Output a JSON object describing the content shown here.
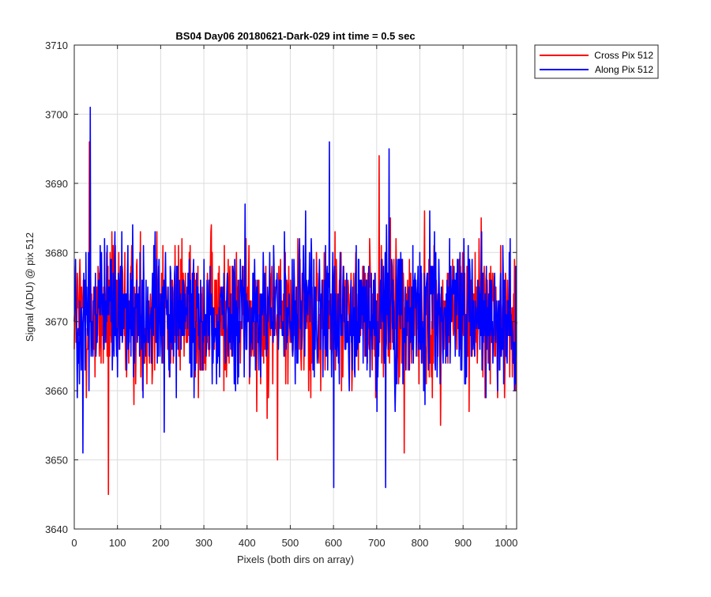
{
  "chart_data": {
    "type": "line",
    "title": "BS04 Day06 20180621-Dark-029 int time = 0.5 sec",
    "xlabel": "Pixels (both dirs on array)",
    "ylabel": "Signal (ADU) @ pix 512",
    "xlim": [
      0,
      1024
    ],
    "ylim": [
      3640,
      3710
    ],
    "xticks": [
      0,
      100,
      200,
      300,
      400,
      500,
      600,
      700,
      800,
      900,
      1000
    ],
    "yticks": [
      3640,
      3650,
      3660,
      3670,
      3680,
      3690,
      3700,
      3710
    ],
    "xtick_labels": [
      "0",
      "100",
      "200",
      "300",
      "400",
      "500",
      "600",
      "700",
      "800",
      "900",
      "1000"
    ],
    "ytick_labels": [
      "3640",
      "3650",
      "3660",
      "3670",
      "3680",
      "3690",
      "3700",
      "3710"
    ],
    "grid": true,
    "legend_position": "outside top-right",
    "series": [
      {
        "name": "Cross Pix 512",
        "color": "#ff0000",
        "n_points": 1024,
        "mean": 3671,
        "noise_amplitude": 6,
        "notable_points": [
          [
            35,
            3696
          ],
          [
            79,
            3645
          ],
          [
            470,
            3650
          ],
          [
            705,
            3694
          ],
          [
            763,
            3651
          ]
        ]
      },
      {
        "name": "Along Pix 512",
        "color": "#0000ff",
        "n_points": 1024,
        "mean": 3671,
        "noise_amplitude": 6,
        "notable_points": [
          [
            37,
            3701
          ],
          [
            20,
            3651
          ],
          [
            590,
            3696
          ],
          [
            600,
            3646
          ],
          [
            720,
            3646
          ],
          [
            728,
            3695
          ]
        ]
      }
    ]
  }
}
